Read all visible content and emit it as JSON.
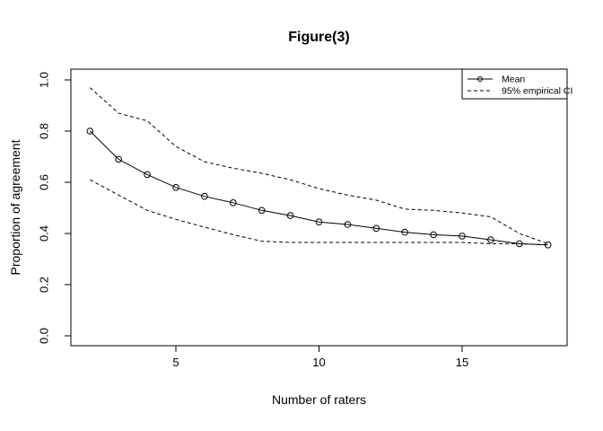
{
  "figure": {
    "title": "Figure(3)",
    "xlabel": "Number of raters",
    "ylabel": "Proportion of agreement"
  },
  "legend": {
    "entries": [
      "Mean",
      "95% empirical CI"
    ],
    "position": "topright"
  },
  "colors": {
    "foreground": "#000000",
    "background": "#ffffff"
  },
  "chart_data": {
    "type": "line",
    "title": "Figure(3)",
    "xlabel": "Number of raters",
    "ylabel": "Proportion of agreement",
    "x": [
      2,
      3,
      4,
      5,
      6,
      7,
      8,
      9,
      10,
      11,
      12,
      13,
      14,
      15,
      16,
      17,
      18
    ],
    "series": [
      {
        "name": "Mean",
        "line": "solid",
        "marker": "open-circle",
        "values": [
          0.8,
          0.69,
          0.63,
          0.58,
          0.545,
          0.52,
          0.49,
          0.47,
          0.445,
          0.435,
          0.42,
          0.405,
          0.395,
          0.39,
          0.375,
          0.36,
          0.355
        ]
      },
      {
        "name": "95% empirical CI (upper)",
        "line": "dashed",
        "marker": "none",
        "values": [
          0.97,
          0.87,
          0.84,
          0.74,
          0.68,
          0.655,
          0.635,
          0.61,
          0.575,
          0.55,
          0.53,
          0.495,
          0.49,
          0.48,
          0.465,
          0.4,
          0.36
        ]
      },
      {
        "name": "95% empirical CI (lower)",
        "line": "dashed",
        "marker": "none",
        "values": [
          0.61,
          0.55,
          0.49,
          0.455,
          0.425,
          0.395,
          0.37,
          0.365,
          0.365,
          0.365,
          0.365,
          0.365,
          0.365,
          0.365,
          0.36,
          0.36,
          0.355
        ]
      }
    ],
    "x_ticks": [
      "5",
      "10",
      "15"
    ],
    "y_tick_labels": [
      "0.0",
      "0.2",
      "0.4",
      "0.6",
      "0.8",
      "1.0"
    ],
    "xlim": [
      1.36,
      18.64
    ],
    "ylim": [
      -0.04,
      1.04
    ],
    "grid": false,
    "legend_entries": [
      "Mean",
      "95% empirical CI"
    ],
    "legend_position": "topright"
  }
}
